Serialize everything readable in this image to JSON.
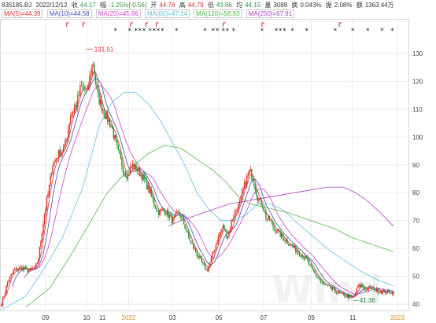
{
  "info_bar": {
    "code": "835185.BJ",
    "date": "2022/12/12",
    "close_label": "收",
    "close_value": "44.17",
    "change_label": "幅",
    "change_value": "-1.25%[-0.56]",
    "open_label": "开",
    "open_value": "44.78",
    "high_label": "高",
    "high_value": "44.79",
    "low_label": "低",
    "low_value": "43.86",
    "avg_label": "均",
    "avg_value": "44.15",
    "volume_label": "量",
    "volume_value": "3088",
    "turnover_label": "换",
    "turnover_value": "0.043%",
    "amplitude_label": "振",
    "amplitude_value": "2.08%",
    "amount_label": "额",
    "amount_value": "1363.44万"
  },
  "ma_legend": [
    {
      "label": "MA(5)=44.39",
      "color": "#e0302a"
    },
    {
      "label": "MA(10)=44.58",
      "color": "#3a4fb8"
    },
    {
      "label": "MA(20)=45.86",
      "color": "#d040d0"
    },
    {
      "label": "MA(60)=47.14",
      "color": "#5bc0e8"
    },
    {
      "label": "MA(120)=58.93",
      "color": "#54b848"
    },
    {
      "label": "MA(250)=67.91",
      "color": "#b040c8"
    }
  ],
  "watermark": "Wind",
  "colors": {
    "up": "#e0302a",
    "down": "#2a9a3a",
    "grid": "#eaeaea",
    "axis_text": "#444444",
    "month_year_text": "#e58a2a"
  },
  "chart_data": {
    "type": "candlestick",
    "ylim": [
      38,
      134
    ],
    "yticks": [
      40,
      50,
      60,
      70,
      80,
      90,
      100,
      110,
      120,
      130
    ],
    "x_domain": [
      0,
      100
    ],
    "x_ticks": [
      {
        "label": "09",
        "t": 10.8
      },
      {
        "label": "10",
        "t": 20.9
      },
      {
        "label": "11",
        "t": 24.8
      },
      {
        "label": "2022",
        "t": 31.2,
        "is_year": true
      },
      {
        "label": "03",
        "t": 42.0
      },
      {
        "label": "05",
        "t": 53.4
      },
      {
        "label": "07",
        "t": 64.4
      },
      {
        "label": "09",
        "t": 76.1
      },
      {
        "label": "11",
        "t": 86.3
      },
      {
        "label": "2023",
        "t": 97.3,
        "is_year": true
      }
    ],
    "annotations": [
      {
        "text": "131.51",
        "t": 22.4,
        "value": 131.51,
        "type": "high"
      },
      {
        "text": "41.38",
        "t": 86.4,
        "value": 41.38,
        "type": "low"
      }
    ],
    "event_markers": {
      "stars": [
        28,
        31.5,
        33,
        34,
        35,
        36.5,
        37.5,
        38.5,
        39.5,
        43,
        50,
        52,
        53,
        54.5,
        55.5,
        57,
        64,
        67.5,
        68.5,
        69.5,
        71.5,
        75,
        82,
        86.3,
        90,
        93.5,
        96
      ],
      "flags": [
        16,
        20,
        31.7,
        35.5,
        38,
        54.5,
        64,
        83
      ]
    },
    "ohlc_anchors": [
      [
        0,
        40
      ],
      [
        1.5,
        48
      ],
      [
        3,
        52
      ],
      [
        5,
        53
      ],
      [
        6.7,
        52
      ],
      [
        8.3,
        53
      ],
      [
        9,
        56
      ],
      [
        10.5,
        72
      ],
      [
        11.5,
        80
      ],
      [
        12.5,
        90
      ],
      [
        14,
        94
      ],
      [
        15.5,
        96
      ],
      [
        17,
        108
      ],
      [
        18.5,
        112
      ],
      [
        19.5,
        118
      ],
      [
        21,
        116
      ],
      [
        22,
        124
      ],
      [
        22.5,
        127
      ],
      [
        23.5,
        115
      ],
      [
        25.5,
        108
      ],
      [
        27,
        104
      ],
      [
        28.5,
        95
      ],
      [
        30,
        88
      ],
      [
        31,
        86
      ],
      [
        32,
        90
      ],
      [
        33.5,
        88
      ],
      [
        35,
        85
      ],
      [
        36.5,
        80
      ],
      [
        37.5,
        76
      ],
      [
        38.5,
        73
      ],
      [
        40,
        74
      ],
      [
        41,
        72
      ],
      [
        42,
        70
      ],
      [
        43.5,
        73
      ],
      [
        44.5,
        70
      ],
      [
        45.5,
        66
      ],
      [
        46.5,
        62
      ],
      [
        48,
        58
      ],
      [
        49.5,
        54
      ],
      [
        50.5,
        52
      ],
      [
        51.5,
        56
      ],
      [
        53,
        63
      ],
      [
        54.5,
        68
      ],
      [
        55.5,
        64
      ],
      [
        57,
        72
      ],
      [
        58.5,
        76
      ],
      [
        60,
        84
      ],
      [
        61,
        88
      ],
      [
        62,
        84
      ],
      [
        63,
        78
      ],
      [
        64,
        76
      ],
      [
        65,
        71
      ],
      [
        66,
        70
      ],
      [
        67,
        67
      ],
      [
        68,
        66
      ],
      [
        69,
        64
      ],
      [
        70.5,
        62
      ],
      [
        72,
        60
      ],
      [
        73.5,
        58
      ],
      [
        75,
        56
      ],
      [
        76,
        53
      ],
      [
        77,
        51
      ],
      [
        78,
        49
      ],
      [
        79,
        47
      ],
      [
        80.5,
        46
      ],
      [
        81.5,
        45
      ],
      [
        83,
        44
      ],
      [
        84,
        43
      ],
      [
        85,
        43
      ],
      [
        86.3,
        42
      ],
      [
        87.5,
        46
      ],
      [
        88.5,
        47
      ],
      [
        89.5,
        45
      ],
      [
        90.5,
        46
      ],
      [
        92,
        45
      ],
      [
        93.5,
        44.5
      ],
      [
        95,
        44.5
      ],
      [
        96.3,
        44.2
      ]
    ],
    "ma_lines": [
      {
        "name": "MA(60)",
        "color": "#5bc0e8",
        "points": [
          [
            0,
            38
          ],
          [
            6,
            43
          ],
          [
            11,
            54
          ],
          [
            15,
            64
          ],
          [
            20,
            82
          ],
          [
            24,
            104
          ],
          [
            27,
            112
          ],
          [
            30,
            116
          ],
          [
            33,
            116
          ],
          [
            36,
            112
          ],
          [
            39,
            106
          ],
          [
            42,
            98
          ],
          [
            45,
            90
          ],
          [
            48,
            80
          ],
          [
            51,
            74
          ],
          [
            54,
            70
          ],
          [
            57,
            70
          ],
          [
            60,
            72
          ],
          [
            63,
            76
          ],
          [
            66,
            76
          ],
          [
            69,
            74
          ],
          [
            72,
            70
          ],
          [
            76,
            65
          ],
          [
            80,
            60
          ],
          [
            84,
            56
          ],
          [
            88,
            52
          ],
          [
            92,
            49
          ],
          [
            96.3,
            46.6
          ]
        ]
      },
      {
        "name": "MA(120)",
        "color": "#54b848",
        "points": [
          [
            6,
            39
          ],
          [
            12,
            46
          ],
          [
            18,
            60
          ],
          [
            22,
            70
          ],
          [
            26,
            80
          ],
          [
            31,
            88
          ],
          [
            36,
            94
          ],
          [
            40,
            97
          ],
          [
            44,
            96
          ],
          [
            48,
            92
          ],
          [
            52,
            88
          ],
          [
            55,
            84
          ],
          [
            58,
            79
          ],
          [
            61,
            76
          ],
          [
            64,
            75
          ],
          [
            67,
            74
          ],
          [
            70,
            73
          ],
          [
            74,
            71
          ],
          [
            78,
            69
          ],
          [
            82,
            67
          ],
          [
            86,
            64
          ],
          [
            90,
            62
          ],
          [
            94,
            60
          ],
          [
            96.3,
            58.9
          ]
        ]
      },
      {
        "name": "MA(250)",
        "color": "#b040c8",
        "points": [
          [
            41,
            68
          ],
          [
            44,
            70
          ],
          [
            48,
            72
          ],
          [
            52,
            74
          ],
          [
            56,
            76
          ],
          [
            60,
            77
          ],
          [
            64,
            78
          ],
          [
            68,
            79
          ],
          [
            72,
            80
          ],
          [
            76,
            81
          ],
          [
            80,
            82
          ],
          [
            84,
            82
          ],
          [
            87,
            80
          ],
          [
            90,
            77
          ],
          [
            93,
            73
          ],
          [
            96.3,
            68
          ]
        ]
      }
    ]
  }
}
